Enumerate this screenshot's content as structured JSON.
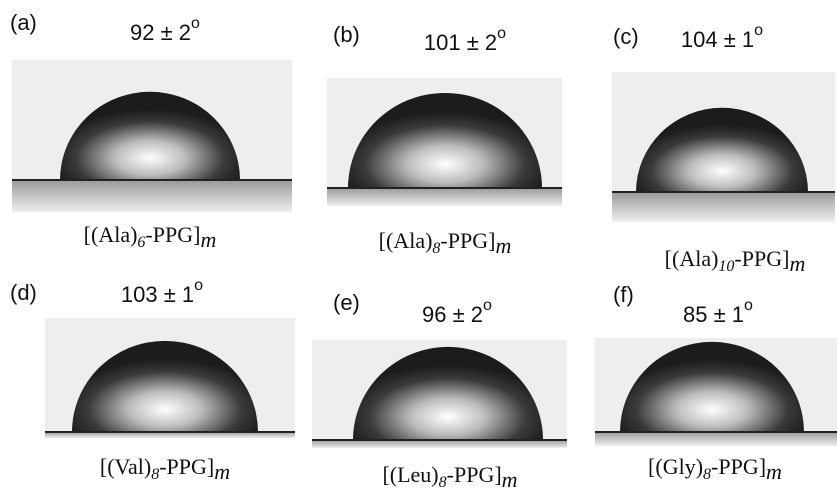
{
  "panels": [
    {
      "label": "(a)",
      "angle": "92 ± 2",
      "degree": "o",
      "caption": {
        "prefix": "[(Ala)",
        "sub": "6",
        "mid": "-PPG]",
        "suffix": "m"
      }
    },
    {
      "label": "(b)",
      "angle": "101 ± 2",
      "degree": "o",
      "caption": {
        "prefix": "[(Ala)",
        "sub": "8",
        "mid": "-PPG]",
        "suffix": "m"
      }
    },
    {
      "label": "(c)",
      "angle": "104 ± 1",
      "degree": "o",
      "caption": {
        "prefix": "[(Ala)",
        "sub": "10",
        "mid": "-PPG]",
        "suffix": "m"
      }
    },
    {
      "label": "(d)",
      "angle": "103 ± 1",
      "degree": "o",
      "caption": {
        "prefix": "[(Val)",
        "sub": "8",
        "mid": "-PPG]",
        "suffix": "m"
      }
    },
    {
      "label": "(e)",
      "angle": "96 ± 2",
      "degree": "o",
      "caption": {
        "prefix": "[(Leu)",
        "sub": "8",
        "mid": "-PPG]",
        "suffix": "m"
      }
    },
    {
      "label": "(f)",
      "angle": "85 ± 1",
      "degree": "o",
      "caption": {
        "prefix": "[(Gly)",
        "sub": "8",
        "mid": "-PPG]",
        "suffix": "m"
      }
    }
  ]
}
